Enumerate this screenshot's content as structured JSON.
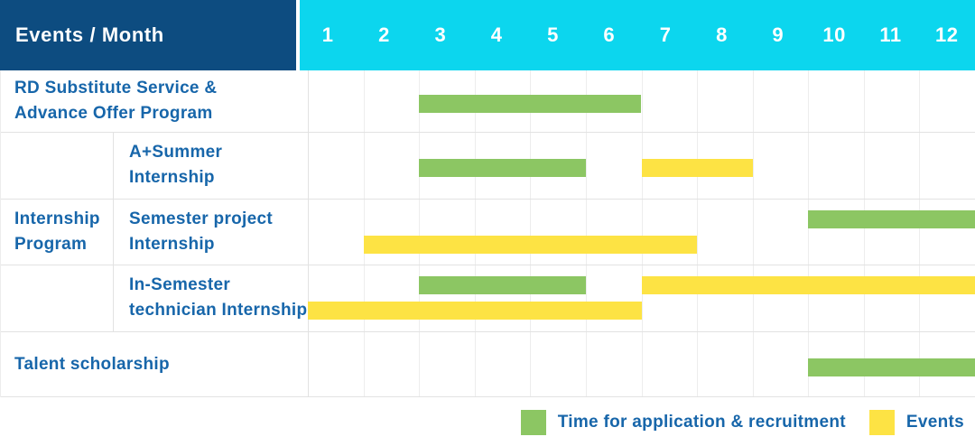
{
  "header": {
    "label": "Events / Month",
    "months": [
      "1",
      "2",
      "3",
      "4",
      "5",
      "6",
      "7",
      "8",
      "9",
      "10",
      "11",
      "12"
    ]
  },
  "colors": {
    "header_navy": "#0d4c80",
    "header_cyan": "#0cd6ee",
    "label_blue": "#1766aa",
    "bar_green": "#8cc663",
    "bar_yellow": "#fde344",
    "grid_line": "#e2e2e2"
  },
  "legend": [
    {
      "label": "Time for application & recruitment",
      "color_key": "green",
      "color": "#8cc663"
    },
    {
      "label": "Events",
      "color_key": "yellow",
      "color": "#fde344"
    }
  ],
  "chart_data": {
    "type": "bar",
    "subtype": "gantt-timeline",
    "title": "Events / Month",
    "x_axis": {
      "label": "Month",
      "ticks": [
        1,
        2,
        3,
        4,
        5,
        6,
        7,
        8,
        9,
        10,
        11,
        12
      ],
      "range": [
        1,
        12
      ]
    },
    "grid": true,
    "legend_position": "bottom-right",
    "series_legend": [
      "Time for application & recruitment",
      "Events"
    ],
    "group_label": "Internship Program",
    "group_label_lines": [
      "Internship",
      "Program"
    ],
    "rows": [
      {
        "group": "",
        "label": "RD Substitute Service & Advance Offer Program",
        "label_lines": [
          "RD Substitute Service &",
          "Advance Offer Program"
        ],
        "bars": [
          {
            "series": "Time for application & recruitment",
            "color_key": "green",
            "start_month": 3,
            "end_month": 6,
            "lane": "center"
          }
        ]
      },
      {
        "group": "Internship Program",
        "label": "A+Summer Internship",
        "label_lines": [
          "A+Summer",
          "Internship"
        ],
        "bars": [
          {
            "series": "Time for application & recruitment",
            "color_key": "green",
            "start_month": 3,
            "end_month": 5,
            "lane": "center"
          },
          {
            "series": "Events",
            "color_key": "yellow",
            "start_month": 7,
            "end_month": 8,
            "lane": "center"
          }
        ]
      },
      {
        "group": "Internship Program",
        "label": "Semester project Internship",
        "label_lines": [
          "Semester project",
          "Internship"
        ],
        "bars": [
          {
            "series": "Time for application & recruitment",
            "color_key": "green",
            "start_month": 10,
            "end_month": 12,
            "lane": "top"
          },
          {
            "series": "Events",
            "color_key": "yellow",
            "start_month": 2,
            "end_month": 7,
            "lane": "bottom"
          }
        ]
      },
      {
        "group": "Internship Program",
        "label": "In-Semester technician Internship",
        "label_lines": [
          "In-Semester",
          "technician Internship"
        ],
        "bars": [
          {
            "series": "Time for application & recruitment",
            "color_key": "green",
            "start_month": 3,
            "end_month": 5,
            "lane": "top"
          },
          {
            "series": "Events",
            "color_key": "yellow",
            "start_month": 7,
            "end_month": 12,
            "lane": "top"
          },
          {
            "series": "Events",
            "color_key": "yellow",
            "start_month": 1,
            "end_month": 6,
            "lane": "bottom"
          }
        ]
      },
      {
        "group": "",
        "label": "Talent scholarship",
        "label_lines": [
          "Talent scholarship"
        ],
        "bars": [
          {
            "series": "Time for application & recruitment",
            "color_key": "green",
            "start_month": 10,
            "end_month": 12,
            "lane": "center"
          }
        ]
      }
    ]
  }
}
